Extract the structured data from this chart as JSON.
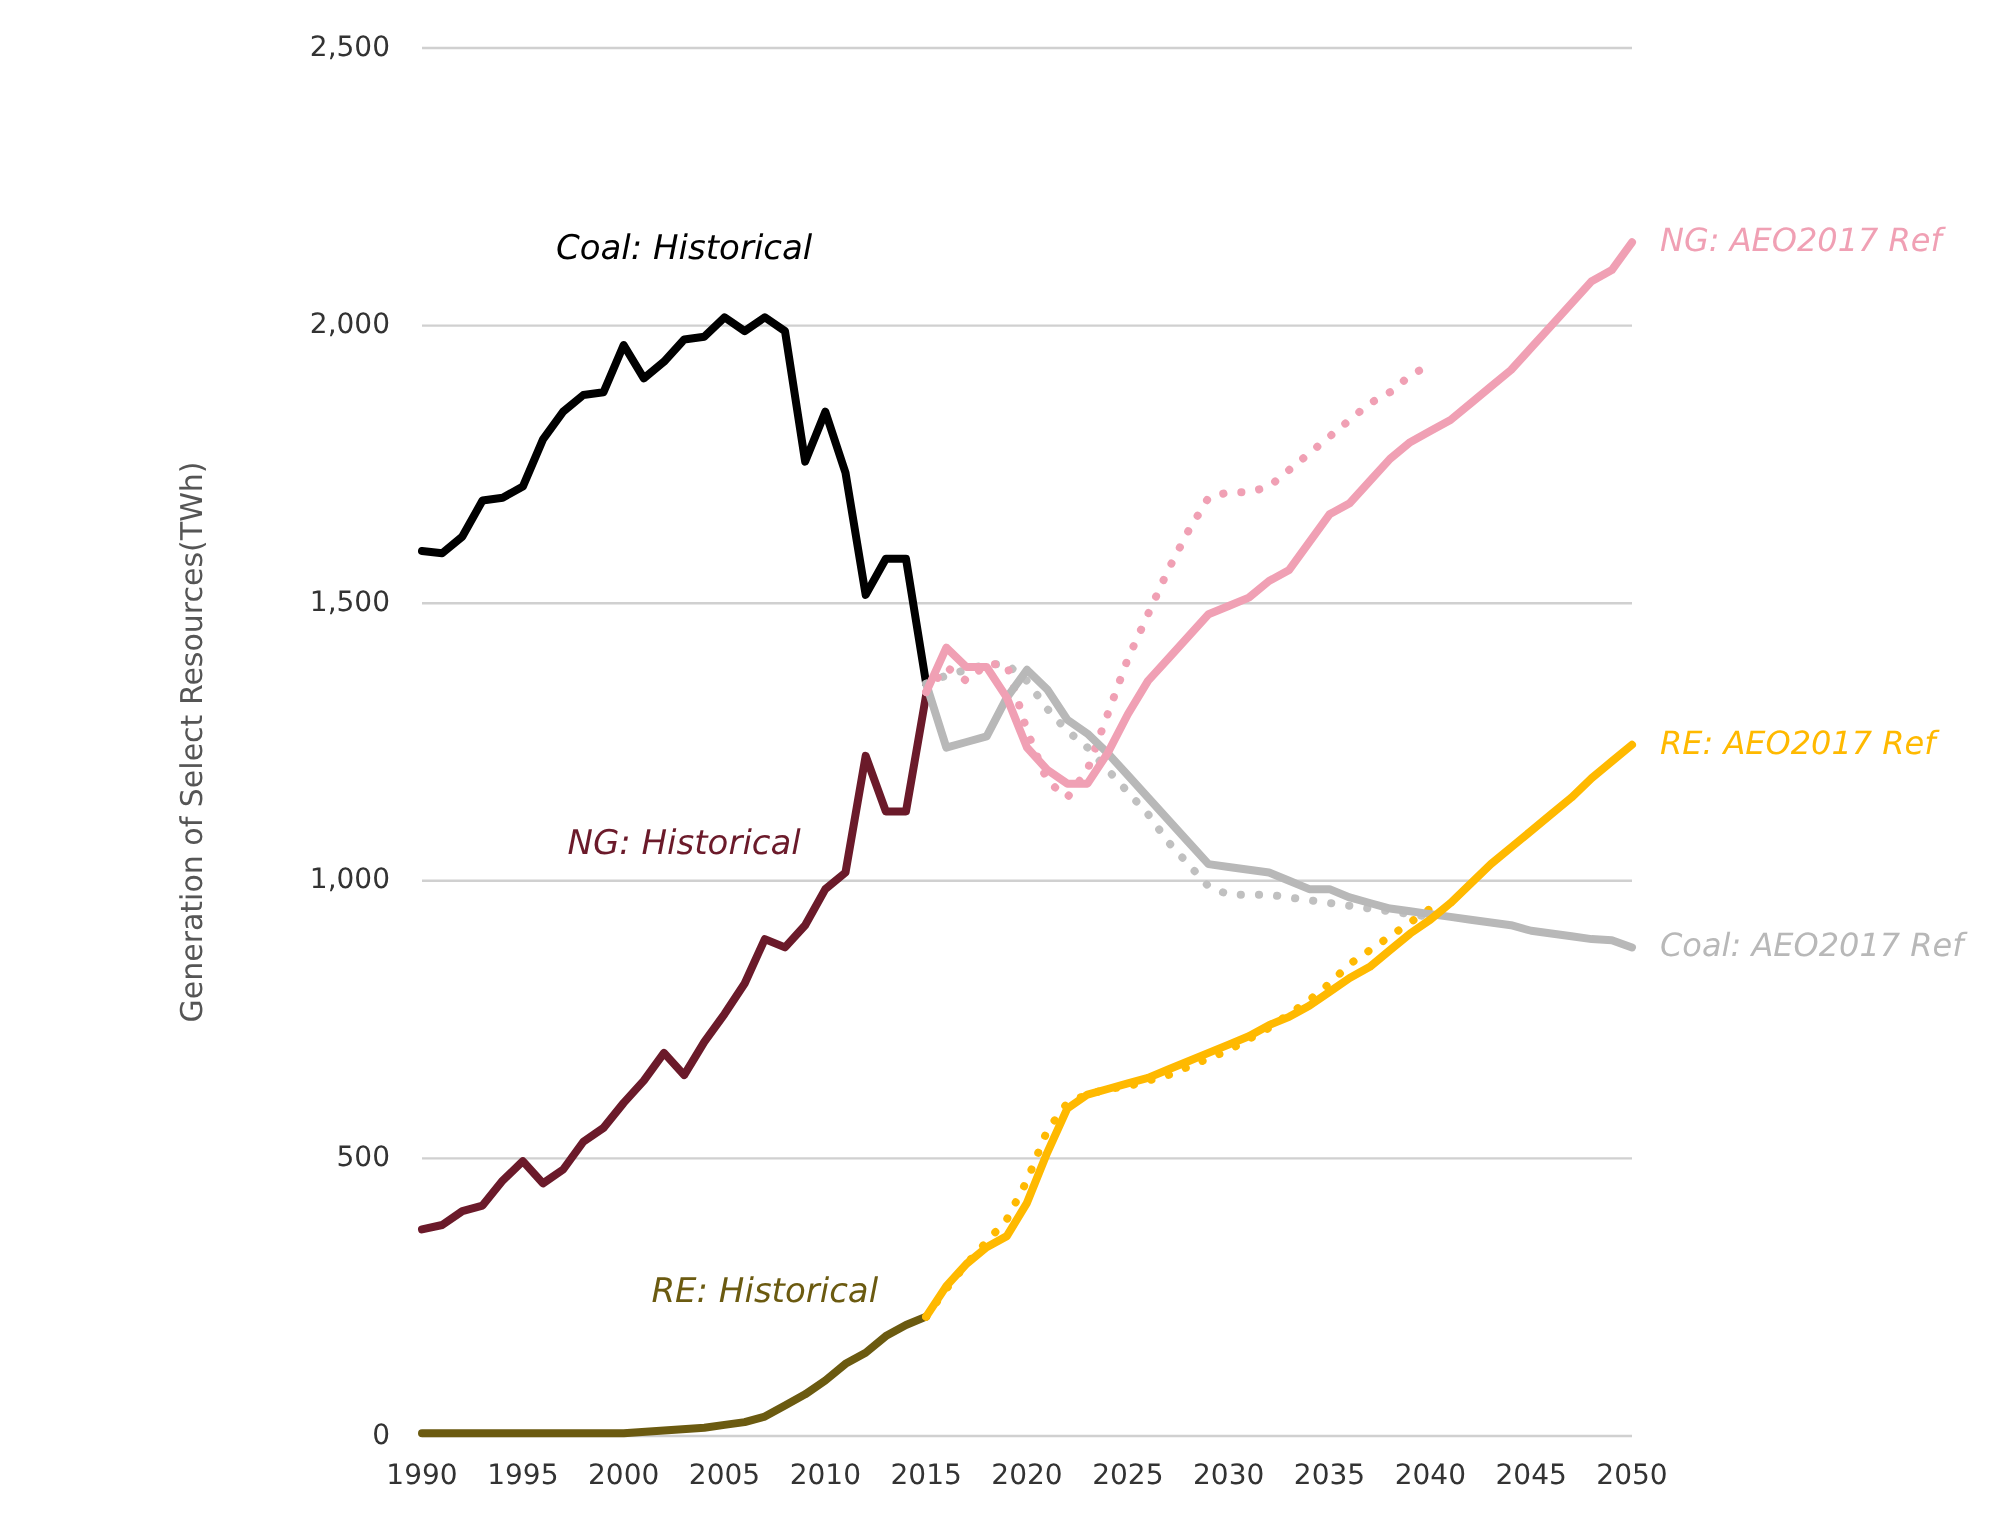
{
  "chart_data": {
    "type": "line",
    "ylabel": "Generation of Select Resources(TWh)",
    "xlim": [
      1990,
      2050
    ],
    "ylim": [
      0,
      2500
    ],
    "xticks": [
      1990,
      1995,
      2000,
      2005,
      2010,
      2015,
      2020,
      2025,
      2030,
      2035,
      2040,
      2045,
      2050
    ],
    "yticks": [
      0,
      500,
      {
        "value": 1000,
        "label": "1,000"
      },
      {
        "value": 1500,
        "label": "1,500"
      },
      {
        "value": 2000,
        "label": "2,000"
      },
      {
        "value": 2500,
        "label": "2,500"
      }
    ],
    "grid": "y",
    "series": [
      {
        "name": "Coal: Historical",
        "color": "#000000",
        "x": [
          1990,
          1991,
          1992,
          1993,
          1994,
          1995,
          1996,
          1997,
          1998,
          1999,
          2000,
          2001,
          2002,
          2003,
          2004,
          2005,
          2006,
          2007,
          2008,
          2009,
          2010,
          2011,
          2012,
          2013,
          2014,
          2015
        ],
        "values": [
          1594,
          1590,
          1620,
          1685,
          1690,
          1710,
          1795,
          1845,
          1875,
          1880,
          1965,
          1905,
          1935,
          1975,
          1980,
          2015,
          1990,
          2015,
          1990,
          1755,
          1845,
          1735,
          1515,
          1580,
          1580,
          1355
        ]
      },
      {
        "name": "NG: Historical",
        "color": "#6b1a2a",
        "x": [
          1990,
          1991,
          1992,
          1993,
          1994,
          1995,
          1996,
          1997,
          1998,
          1999,
          2000,
          2001,
          2002,
          2003,
          2004,
          2005,
          2006,
          2007,
          2008,
          2009,
          2010,
          2011,
          2012,
          2013,
          2014,
          2015
        ],
        "values": [
          372,
          380,
          405,
          415,
          460,
          495,
          455,
          480,
          530,
          555,
          600,
          640,
          690,
          650,
          710,
          760,
          815,
          895,
          880,
          920,
          985,
          1015,
          1225,
          1125,
          1125,
          1335
        ]
      },
      {
        "name": "RE: Historical",
        "color": "#6b5a10",
        "x": [
          1990,
          1992,
          1994,
          1996,
          1998,
          2000,
          2002,
          2004,
          2005,
          2006,
          2007,
          2008,
          2009,
          2010,
          2011,
          2012,
          2013,
          2014,
          2015
        ],
        "values": [
          5,
          5,
          5,
          5,
          5,
          5,
          10,
          15,
          20,
          25,
          35,
          55,
          75,
          100,
          130,
          150,
          180,
          200,
          215
        ]
      },
      {
        "color": "#c0c0c0",
        "line_style": "dotted",
        "x": [
          2015,
          2016,
          2017,
          2018,
          2019,
          2020,
          2021,
          2022,
          2023,
          2024,
          2025,
          2026,
          2027,
          2028,
          2029,
          2030,
          2031,
          2032,
          2033,
          2034,
          2035,
          2036,
          2037,
          2038,
          2039,
          2040
        ],
        "values": [
          1355,
          1370,
          1380,
          1390,
          1390,
          1360,
          1310,
          1270,
          1240,
          1200,
          1160,
          1120,
          1070,
          1030,
          990,
          975,
          975,
          975,
          970,
          965,
          960,
          955,
          950,
          945,
          940,
          935
        ]
      },
      {
        "color": "#f0a0b4",
        "line_style": "dotted",
        "x": [
          2015,
          2016,
          2017,
          2018,
          2019,
          2020,
          2021,
          2022,
          2023,
          2024,
          2025,
          2026,
          2027,
          2028,
          2029,
          2030,
          2031,
          2032,
          2033,
          2034,
          2035,
          2036,
          2037,
          2038,
          2039,
          2040
        ],
        "values": [
          1340,
          1385,
          1360,
          1390,
          1390,
          1270,
          1180,
          1150,
          1200,
          1300,
          1400,
          1480,
          1560,
          1630,
          1690,
          1700,
          1700,
          1710,
          1740,
          1770,
          1800,
          1830,
          1860,
          1880,
          1910,
          1930
        ]
      },
      {
        "color": "#ffb900",
        "line_style": "dotted",
        "x": [
          2015,
          2016,
          2017,
          2018,
          2019,
          2020,
          2021,
          2022,
          2023,
          2024,
          2025,
          2026,
          2027,
          2028,
          2029,
          2030,
          2031,
          2032,
          2033,
          2034,
          2035,
          2036,
          2037,
          2038,
          2039,
          2040
        ],
        "values": [
          215,
          265,
          310,
          350,
          390,
          460,
          550,
          600,
          615,
          625,
          630,
          640,
          650,
          665,
          680,
          695,
          715,
          735,
          760,
          785,
          815,
          850,
          875,
          900,
          925,
          950
        ]
      },
      {
        "name": "Coal: AEO2017 Ref",
        "color": "#b8b8b8",
        "x": [
          2015,
          2016,
          2017,
          2018,
          2019,
          2020,
          2021,
          2022,
          2023,
          2024,
          2025,
          2026,
          2027,
          2028,
          2029,
          2030,
          2031,
          2032,
          2033,
          2034,
          2035,
          2036,
          2037,
          2038,
          2039,
          2040,
          2041,
          2042,
          2043,
          2044,
          2045,
          2046,
          2047,
          2048,
          2049,
          2050
        ],
        "values": [
          1355,
          1240,
          1250,
          1260,
          1330,
          1380,
          1345,
          1290,
          1265,
          1230,
          1190,
          1150,
          1110,
          1070,
          1030,
          1025,
          1020,
          1015,
          1000,
          985,
          985,
          970,
          960,
          950,
          945,
          940,
          935,
          930,
          925,
          920,
          910,
          905,
          900,
          895,
          893,
          880
        ]
      },
      {
        "name": "NG: AEO2017 Ref",
        "color": "#f0a0b4",
        "x": [
          2015,
          2016,
          2017,
          2018,
          2019,
          2020,
          2021,
          2022,
          2023,
          2024,
          2025,
          2026,
          2027,
          2028,
          2029,
          2030,
          2031,
          2032,
          2033,
          2034,
          2035,
          2036,
          2037,
          2038,
          2039,
          2040,
          2041,
          2042,
          2043,
          2044,
          2045,
          2046,
          2047,
          2048,
          2049,
          2050
        ],
        "values": [
          1340,
          1420,
          1385,
          1385,
          1330,
          1240,
          1200,
          1175,
          1175,
          1230,
          1300,
          1360,
          1400,
          1440,
          1480,
          1495,
          1510,
          1540,
          1560,
          1610,
          1660,
          1680,
          1720,
          1760,
          1790,
          1810,
          1830,
          1860,
          1890,
          1920,
          1960,
          2000,
          2040,
          2080,
          2100,
          2150
        ]
      },
      {
        "name": "RE: AEO2017 Ref",
        "color": "#ffb900",
        "x": [
          2015,
          2016,
          2017,
          2018,
          2019,
          2020,
          2021,
          2022,
          2023,
          2024,
          2025,
          2026,
          2027,
          2028,
          2029,
          2030,
          2031,
          2032,
          2033,
          2034,
          2035,
          2036,
          2037,
          2038,
          2039,
          2040,
          2041,
          2042,
          2043,
          2044,
          2045,
          2046,
          2047,
          2048,
          2049,
          2050
        ],
        "values": [
          215,
          270,
          310,
          340,
          360,
          420,
          510,
          590,
          615,
          625,
          635,
          645,
          660,
          675,
          690,
          705,
          720,
          740,
          755,
          775,
          800,
          825,
          845,
          875,
          905,
          930,
          960,
          995,
          1030,
          1060,
          1090,
          1120,
          1150,
          1185,
          1215,
          1245
        ]
      }
    ]
  }
}
